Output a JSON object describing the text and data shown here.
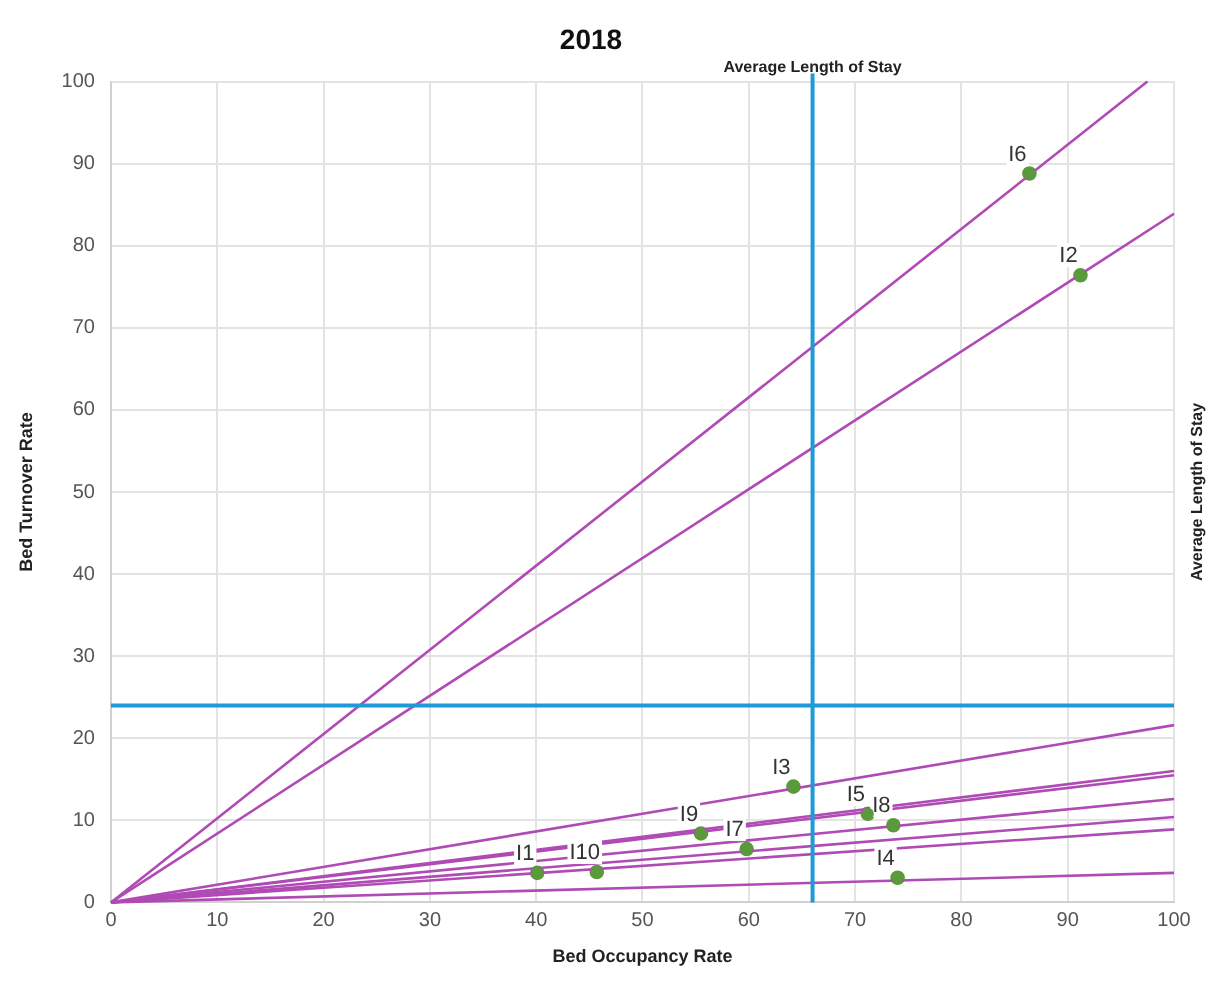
{
  "chart_data": {
    "type": "scatter",
    "title": "2018",
    "xlabel": "Bed Occupancy Rate",
    "ylabel": "Bed Turnover Rate",
    "xlim": [
      0,
      100
    ],
    "ylim": [
      0,
      100
    ],
    "xticks": [
      0,
      10,
      20,
      30,
      40,
      50,
      60,
      70,
      80,
      90,
      100
    ],
    "yticks": [
      0,
      10,
      20,
      30,
      40,
      50,
      60,
      70,
      80,
      90,
      100
    ],
    "grid": true,
    "legend": false,
    "marker": "circle",
    "ref_lines": [
      {
        "axis": "x",
        "value": 66,
        "label": "Average Length of Stay",
        "color": "#1e9ad6"
      },
      {
        "axis": "y",
        "value": 24,
        "color": "#1e9ad6"
      }
    ],
    "annotations": [
      "Average Length of Stay"
    ],
    "series": [
      {
        "type": "line",
        "marker": "none",
        "color": "#b04ab4",
        "x": [
          0,
          97.5
        ],
        "values": [
          0,
          100
        ]
      },
      {
        "type": "line",
        "marker": "none",
        "color": "#b04ab4",
        "x": [
          0,
          100
        ],
        "values": [
          0,
          83.9
        ]
      },
      {
        "type": "line",
        "marker": "none",
        "color": "#b04ab4",
        "x": [
          0,
          100
        ],
        "values": [
          0,
          21.6
        ]
      },
      {
        "type": "line",
        "marker": "none",
        "color": "#b04ab4",
        "x": [
          0,
          100
        ],
        "values": [
          0,
          16
        ]
      },
      {
        "type": "line",
        "marker": "none",
        "color": "#b04ab4",
        "x": [
          0,
          100
        ],
        "values": [
          0,
          15.5
        ]
      },
      {
        "type": "line",
        "marker": "none",
        "color": "#b04ab4",
        "x": [
          0,
          100
        ],
        "values": [
          0,
          12.6
        ]
      },
      {
        "type": "line",
        "marker": "none",
        "color": "#b04ab4",
        "x": [
          0,
          100
        ],
        "values": [
          0,
          10.4
        ]
      },
      {
        "type": "line",
        "marker": "none",
        "color": "#b04ab4",
        "x": [
          0,
          100
        ],
        "values": [
          0,
          8.9
        ]
      },
      {
        "type": "line",
        "marker": "none",
        "color": "#b04ab4",
        "x": [
          0,
          100
        ],
        "values": [
          0,
          3.6
        ]
      },
      {
        "name": "I1",
        "color": "#5a9a3c",
        "x": [
          40.1
        ],
        "values": [
          3.6
        ]
      },
      {
        "name": "I2",
        "color": "#5a9a3c",
        "x": [
          91.2
        ],
        "values": [
          76.4
        ]
      },
      {
        "name": "I3",
        "color": "#5a9a3c",
        "x": [
          64.2
        ],
        "values": [
          14.1
        ]
      },
      {
        "name": "I4",
        "color": "#5a9a3c",
        "x": [
          74
        ],
        "values": [
          3
        ]
      },
      {
        "name": "I5",
        "color": "#5a9a3c",
        "x": [
          71.2
        ],
        "values": [
          10.8
        ]
      },
      {
        "name": "I6",
        "color": "#5a9a3c",
        "x": [
          86.4
        ],
        "values": [
          88.8
        ]
      },
      {
        "name": "I7",
        "color": "#5a9a3c",
        "x": [
          59.8
        ],
        "values": [
          6.5
        ]
      },
      {
        "name": "I8",
        "color": "#5a9a3c",
        "x": [
          73.6
        ],
        "values": [
          9.4
        ]
      },
      {
        "name": "I9",
        "color": "#5a9a3c",
        "x": [
          55.5
        ],
        "values": [
          8.4
        ]
      },
      {
        "name": "I10",
        "color": "#5a9a3c",
        "x": [
          45.7
        ],
        "values": [
          3.7
        ]
      }
    ]
  }
}
